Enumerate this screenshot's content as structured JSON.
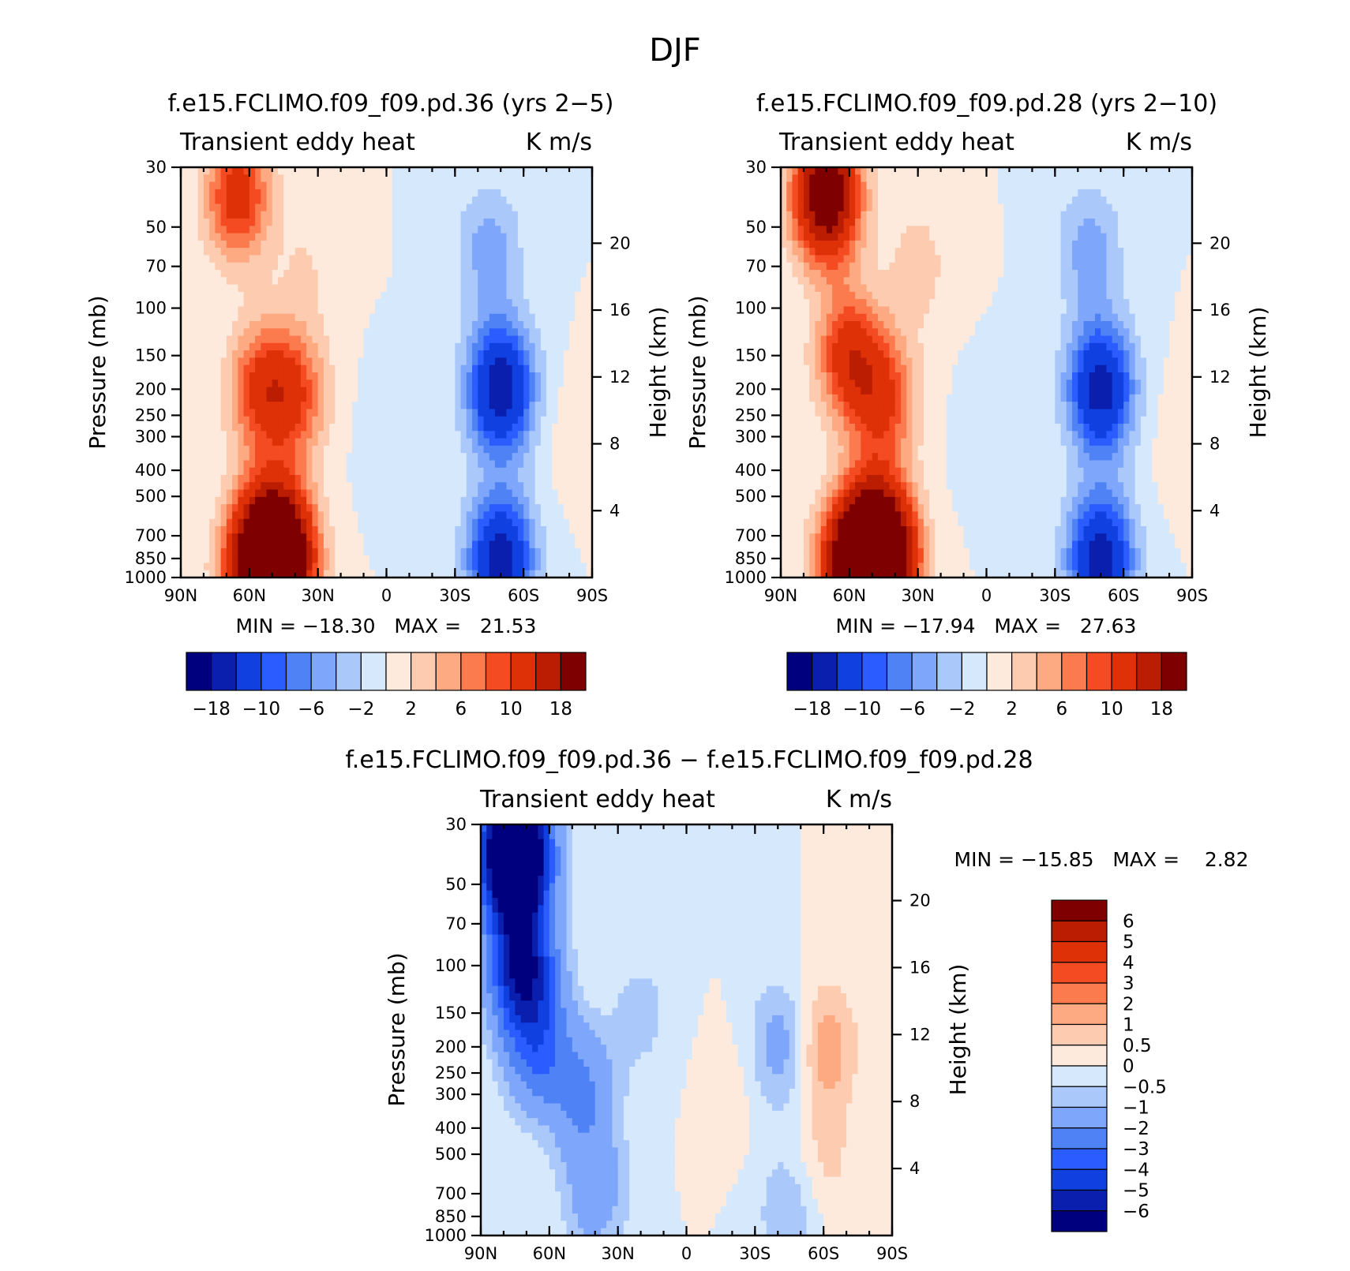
{
  "figure_title": "DJF",
  "chart_data": [
    {
      "type": "heatmap",
      "title": "f.e15.FCLIMO.f09_f09.pd.36 (yrs 2−5)",
      "left_subtitle": "Transient eddy heat",
      "right_subtitle": "K m/s",
      "xlabel": "",
      "ylabel": "Pressure (mb)",
      "ylabel_right": "Height (km)",
      "x_ticks": [
        "90N",
        "60N",
        "30N",
        "0",
        "30S",
        "60S",
        "90S"
      ],
      "x_range": [
        90,
        -90
      ],
      "y_ticks": [
        "30",
        "50",
        "70",
        "100",
        "150",
        "200",
        "250",
        "300",
        "400",
        "500",
        "700",
        "850",
        "1000"
      ],
      "y_range": [
        1000,
        30
      ],
      "y_right_ticks": [
        "4",
        "8",
        "12",
        "16",
        "20"
      ],
      "stats": "MIN = −18.30   MAX =   21.53",
      "min": -18.3,
      "max": 21.53,
      "levels": [
        -18,
        -14,
        -10,
        -8,
        -6,
        -4,
        -2,
        0,
        2,
        4,
        6,
        8,
        10,
        14,
        18
      ],
      "colorbar_labels": [
        "−18",
        "−10",
        "−6",
        "−2",
        "2",
        "6",
        "10",
        "18"
      ],
      "features": [
        {
          "lat": 65,
          "p": 38,
          "value": 12
        },
        {
          "lat": 50,
          "p": 700,
          "value": 14
        },
        {
          "lat": 45,
          "p": 880,
          "value": 20
        },
        {
          "lat": 58,
          "p": 920,
          "value": 16
        },
        {
          "lat": 55,
          "p": 200,
          "value": 10
        },
        {
          "lat": 40,
          "p": 210,
          "value": 9
        },
        {
          "lat": 35,
          "p": 70,
          "value": 2
        },
        {
          "lat": 0,
          "p": 300,
          "value": -1
        },
        {
          "lat": -50,
          "p": 200,
          "value": -17
        },
        {
          "lat": -50,
          "p": 850,
          "value": -16
        },
        {
          "lat": -45,
          "p": 60,
          "value": -5
        },
        {
          "lat": -80,
          "p": 300,
          "value": 1
        }
      ]
    },
    {
      "type": "heatmap",
      "title": "f.e15.FCLIMO.f09_f09.pd.28 (yrs 2−10)",
      "left_subtitle": "Transient eddy heat",
      "right_subtitle": "K m/s",
      "xlabel": "",
      "ylabel": "Pressure (mb)",
      "ylabel_right": "Height (km)",
      "x_ticks": [
        "90N",
        "60N",
        "30N",
        "0",
        "30S",
        "60S",
        "90S"
      ],
      "x_range": [
        90,
        -90
      ],
      "y_ticks": [
        "30",
        "50",
        "70",
        "100",
        "150",
        "200",
        "250",
        "300",
        "400",
        "500",
        "700",
        "850",
        "1000"
      ],
      "y_range": [
        1000,
        30
      ],
      "y_right_ticks": [
        "4",
        "8",
        "12",
        "16",
        "20"
      ],
      "stats": "MIN = −17.94   MAX =   27.63",
      "min": -17.94,
      "max": 27.63,
      "levels": [
        -18,
        -14,
        -10,
        -8,
        -6,
        -4,
        -2,
        0,
        2,
        4,
        6,
        8,
        10,
        14,
        18
      ],
      "colorbar_labels": [
        "−18",
        "−10",
        "−6",
        "−2",
        "2",
        "6",
        "10",
        "18"
      ],
      "features": [
        {
          "lat": 70,
          "p": 38,
          "value": 24
        },
        {
          "lat": 60,
          "p": 150,
          "value": 12
        },
        {
          "lat": 50,
          "p": 700,
          "value": 14
        },
        {
          "lat": 45,
          "p": 880,
          "value": 26
        },
        {
          "lat": 60,
          "p": 920,
          "value": 18
        },
        {
          "lat": 45,
          "p": 220,
          "value": 10
        },
        {
          "lat": 30,
          "p": 70,
          "value": 3
        },
        {
          "lat": 0,
          "p": 300,
          "value": -1
        },
        {
          "lat": -50,
          "p": 200,
          "value": -16
        },
        {
          "lat": -50,
          "p": 850,
          "value": -16
        },
        {
          "lat": -45,
          "p": 60,
          "value": -5
        },
        {
          "lat": -85,
          "p": 300,
          "value": 1
        }
      ]
    },
    {
      "type": "heatmap",
      "title": "f.e15.FCLIMO.f09_f09.pd.36 − f.e15.FCLIMO.f09_f09.pd.28",
      "left_subtitle": "Transient eddy heat",
      "right_subtitle": "K m/s",
      "xlabel": "",
      "ylabel": "Pressure (mb)",
      "ylabel_right": "Height (km)",
      "x_ticks": [
        "90N",
        "60N",
        "30N",
        "0",
        "30S",
        "60S",
        "90S"
      ],
      "x_range": [
        90,
        -90
      ],
      "y_ticks": [
        "30",
        "50",
        "70",
        "100",
        "150",
        "200",
        "250",
        "300",
        "400",
        "500",
        "700",
        "850",
        "1000"
      ],
      "y_range": [
        1000,
        30
      ],
      "y_right_ticks": [
        "4",
        "8",
        "12",
        "16",
        "20"
      ],
      "stats": "MIN = −15.85   MAX =    2.82",
      "min": -15.85,
      "max": 2.82,
      "levels": [
        -6,
        -5,
        -4,
        -3,
        -2,
        -1,
        -0.5,
        0,
        0.5,
        1,
        2,
        3,
        4,
        5,
        6
      ],
      "colorbar_labels": [
        "6",
        "5",
        "4",
        "3",
        "2",
        "1",
        "0.5",
        "0",
        "−0.5",
        "−1",
        "−2",
        "−3",
        "−4",
        "−5",
        "−6"
      ],
      "features": [
        {
          "lat": 75,
          "p": 38,
          "value": -12
        },
        {
          "lat": 72,
          "p": 100,
          "value": -6
        },
        {
          "lat": 65,
          "p": 200,
          "value": -3
        },
        {
          "lat": 45,
          "p": 300,
          "value": -2
        },
        {
          "lat": 40,
          "p": 700,
          "value": -1.5
        },
        {
          "lat": 20,
          "p": 150,
          "value": -0.7
        },
        {
          "lat": -20,
          "p": 300,
          "value": 0.3
        },
        {
          "lat": -42,
          "p": 200,
          "value": -1.5
        },
        {
          "lat": -60,
          "p": 200,
          "value": 1.5
        },
        {
          "lat": -60,
          "p": 550,
          "value": 0.7
        },
        {
          "lat": -45,
          "p": 800,
          "value": -1
        }
      ]
    }
  ],
  "colors": {
    "ramp": [
      "#00007f",
      "#0a1fad",
      "#1040e0",
      "#2a5cff",
      "#4f82f5",
      "#7ea6fa",
      "#abc8fb",
      "#d6e8fb",
      "#feeadd",
      "#fdcbb0",
      "#fdaa82",
      "#fb7a4e",
      "#f44b22",
      "#de3107",
      "#ba1d02",
      "#7f0000"
    ]
  }
}
